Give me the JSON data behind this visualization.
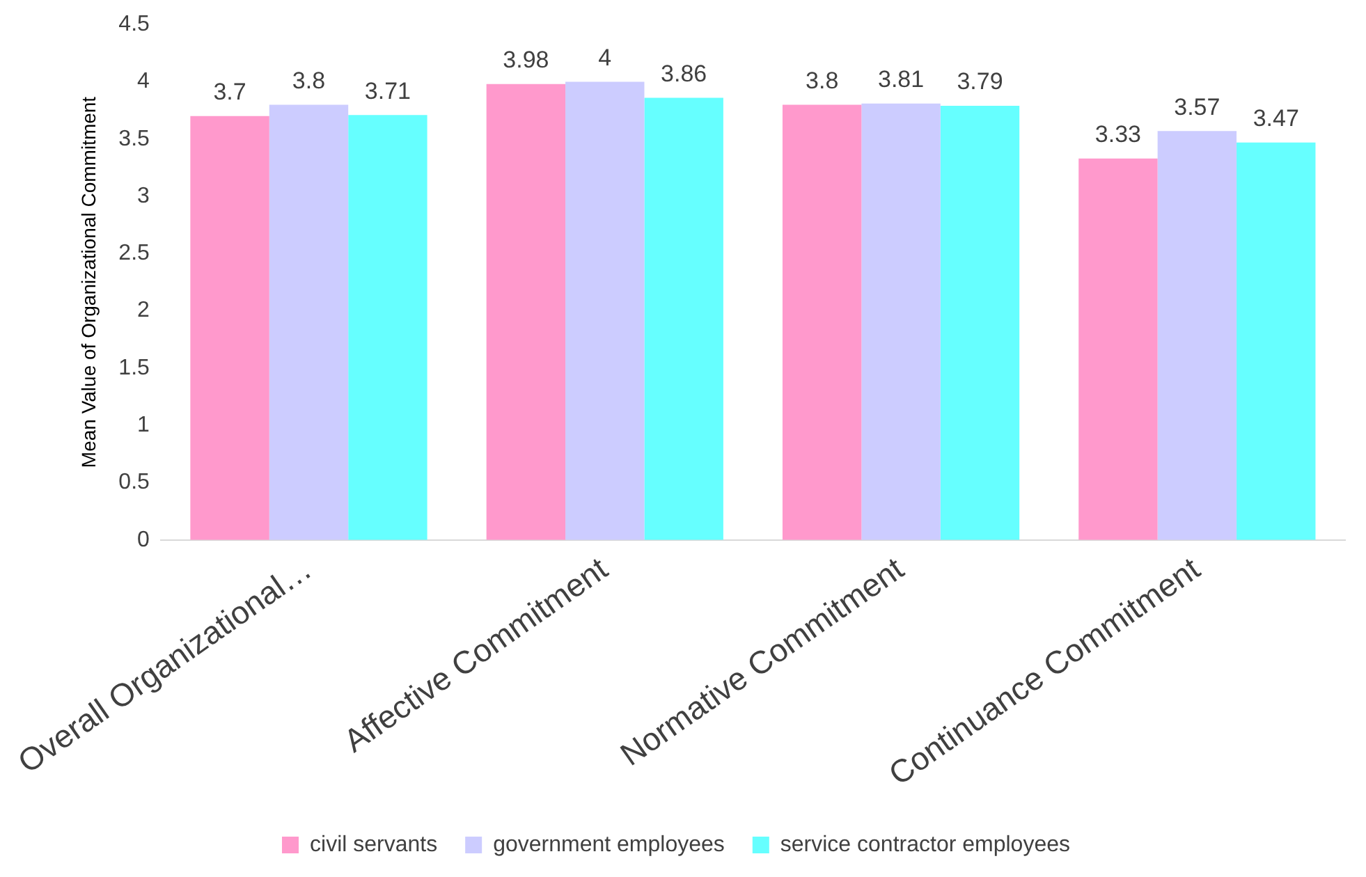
{
  "chart_data": {
    "type": "bar",
    "ylabel": "Mean Value of Organizational Commitment",
    "categories": [
      "Overall Organizational…",
      "Affective Commitment",
      "Normative Commitment",
      "Continuance Commitment"
    ],
    "series": [
      {
        "name": "civil servants",
        "color": "#ff99cc",
        "values": [
          3.7,
          3.98,
          3.8,
          3.33
        ]
      },
      {
        "name": "government employees",
        "color": "#ccccff",
        "values": [
          3.8,
          4,
          3.81,
          3.57
        ]
      },
      {
        "name": "service contractor employees",
        "color": "#66ffff",
        "values": [
          3.71,
          3.86,
          3.79,
          3.47
        ]
      }
    ],
    "ylim": [
      0,
      4.5
    ],
    "yticks": [
      0,
      0.5,
      1,
      1.5,
      2,
      2.5,
      3,
      3.5,
      4,
      4.5
    ],
    "grid": false,
    "legend": "bottom",
    "data_labels": true
  }
}
